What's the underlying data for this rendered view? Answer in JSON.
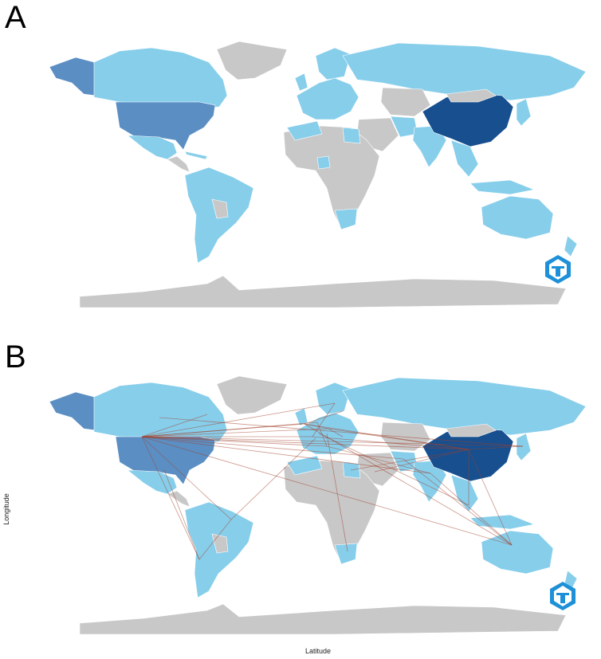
{
  "panels": {
    "a": {
      "label": "A"
    },
    "b": {
      "label": "B",
      "xlabel": "Latitude",
      "ylabel": "Longitude"
    }
  },
  "colors": {
    "no_data": "#c8c8c8",
    "low": "#87ceeb",
    "mid": "#9fc7e6",
    "high": "#5b8fc4",
    "highest": "#174f8f",
    "link": "#a0402a",
    "logo": "#1e90d8"
  },
  "icons": [
    "bibliometrix-logo-icon"
  ]
}
